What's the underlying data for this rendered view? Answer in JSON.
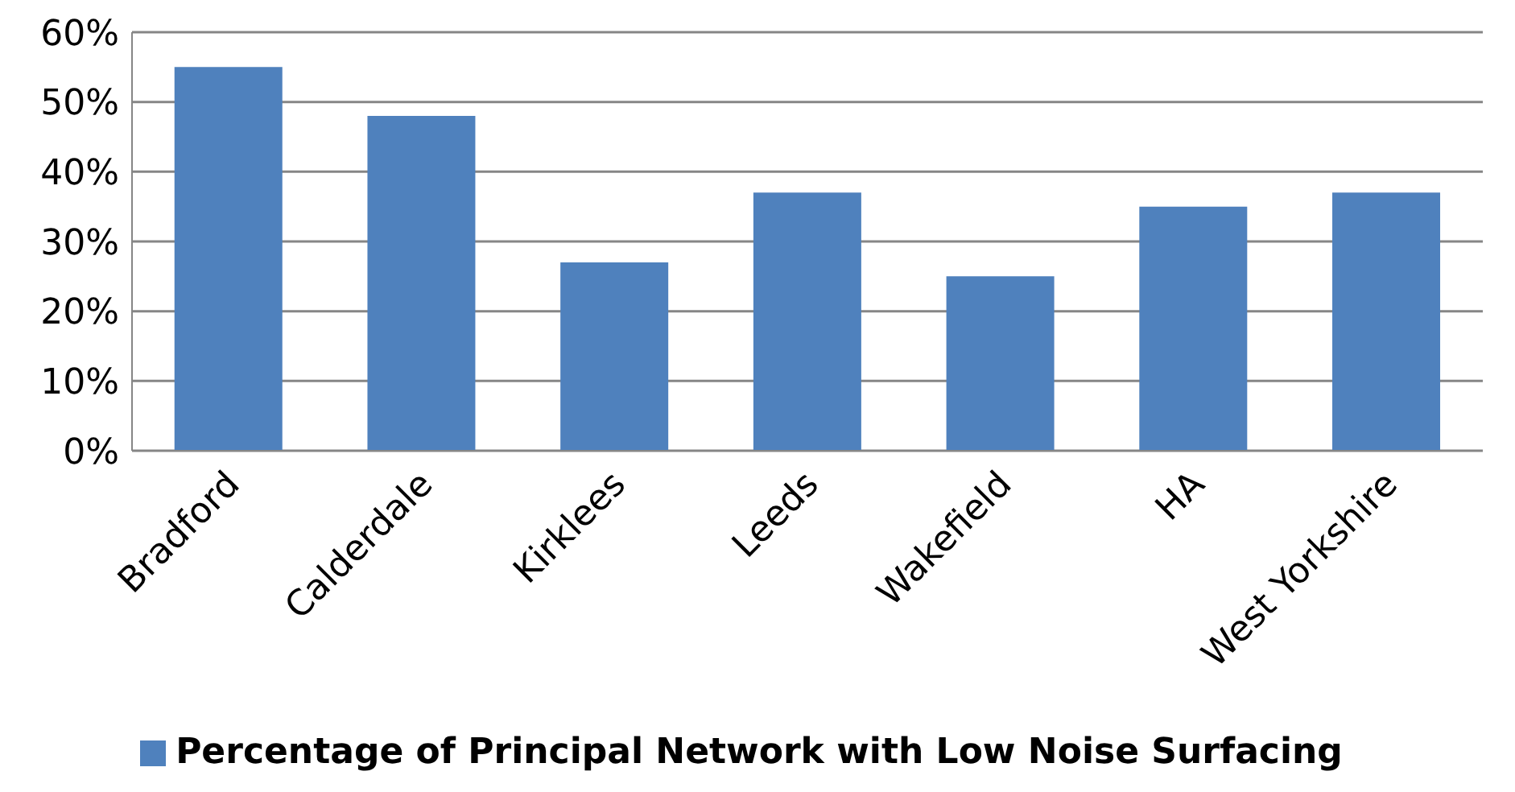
{
  "chart_data": {
    "type": "bar",
    "categories": [
      "Bradford",
      "Calderdale",
      "Kirklees",
      "Leeds",
      "Wakefield",
      "HA",
      "West Yorkshire"
    ],
    "series": [
      {
        "name": "Percentage of Principal Network with Low Noise Surfacing",
        "color": "#4f81bd",
        "values": [
          55,
          48,
          27,
          37,
          25,
          35,
          37
        ]
      }
    ],
    "ylim": [
      0,
      60
    ],
    "yticks": [
      {
        "value": 0,
        "label": "0%"
      },
      {
        "value": 10,
        "label": "10%"
      },
      {
        "value": 20,
        "label": "20%"
      },
      {
        "value": 30,
        "label": "30%"
      },
      {
        "value": 40,
        "label": "40%"
      },
      {
        "value": 50,
        "label": "50%"
      },
      {
        "value": 60,
        "label": "60%"
      }
    ],
    "grid": "y",
    "legend": "bottom"
  }
}
